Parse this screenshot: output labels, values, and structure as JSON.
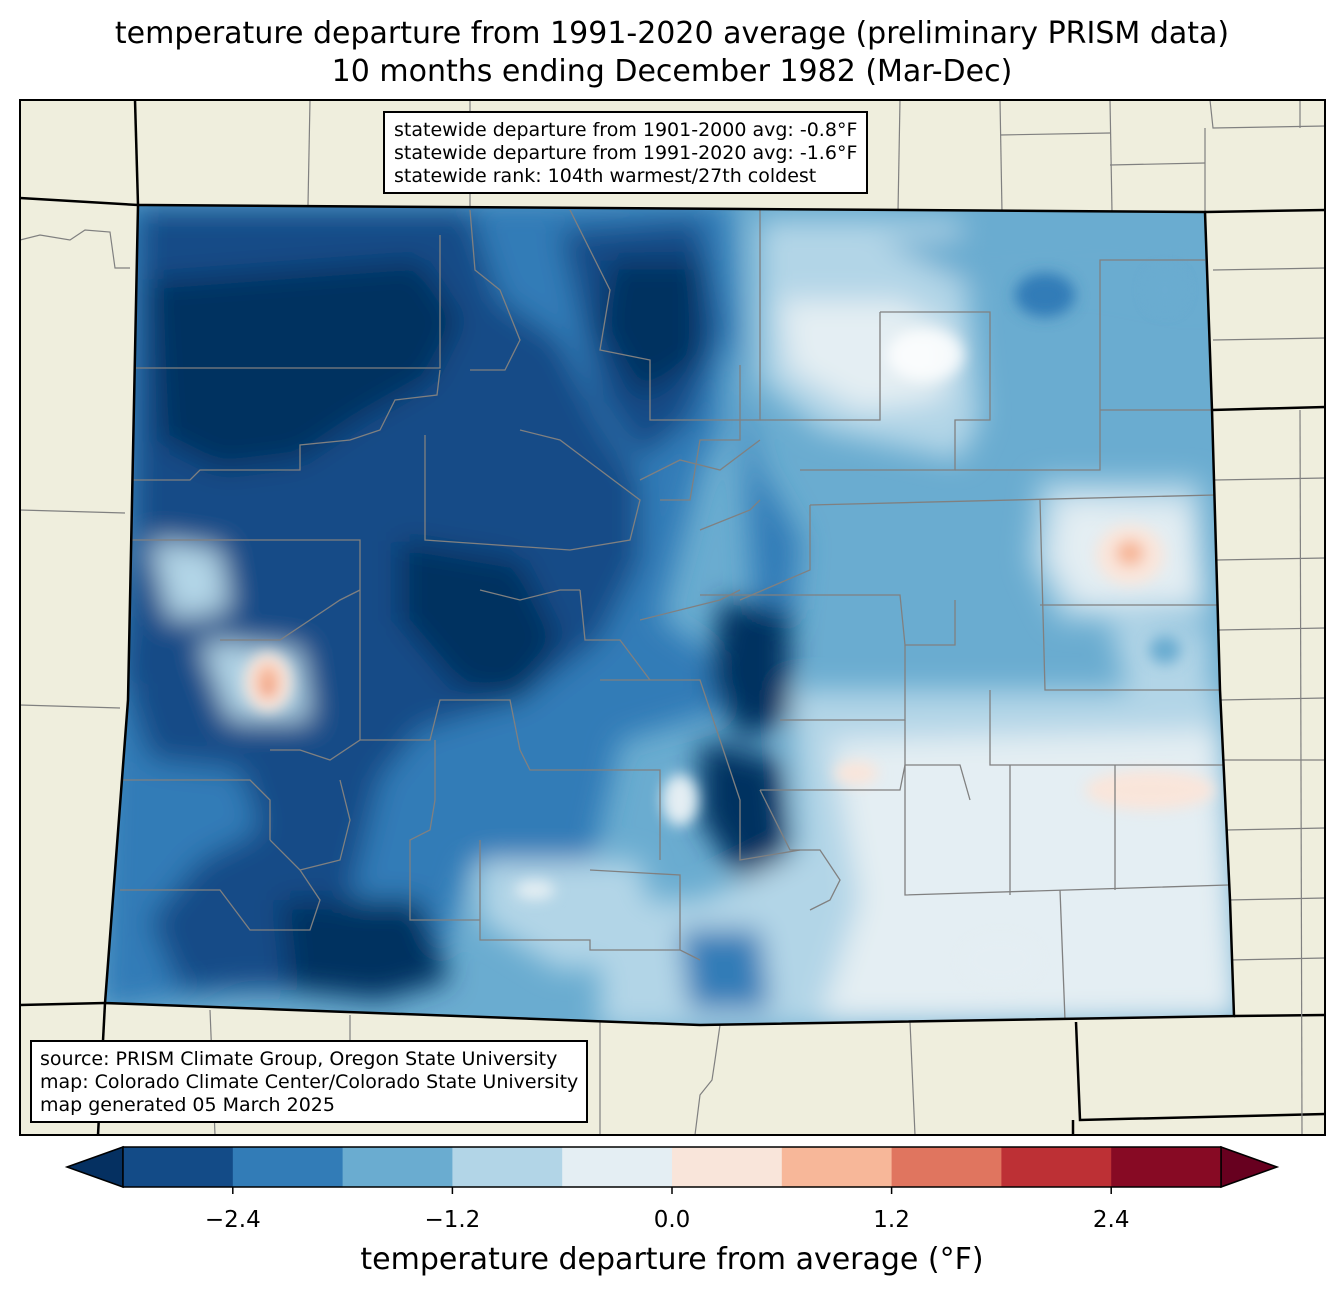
{
  "title": {
    "line1": "temperature departure from 1991-2020 average (preliminary PRISM data)",
    "line2": "10 months ending December 1982 (Mar-Dec)"
  },
  "stats": {
    "line1": "statewide departure from 1901-2000 avg: -0.8°F",
    "line2": "statewide departure from 1991-2020 avg: -1.6°F",
    "line3": "statewide rank: 104th warmest/27th coldest"
  },
  "credits": {
    "line1": "source: PRISM Climate Group, Oregon State University",
    "line2": "map: Colorado Climate Center/Colorado State University",
    "line3": "map generated 05 March 2025"
  },
  "colorbar": {
    "label": "temperature departure from average (°F)",
    "ticks": [
      "−2.4",
      "−1.2",
      "0.0",
      "1.2",
      "2.4"
    ],
    "tick_values": [
      -2.4,
      -1.2,
      0.0,
      1.2,
      2.4
    ],
    "bounds": [
      -3.0,
      3.0
    ],
    "step": 0.6,
    "colors": [
      "#053061",
      "#134b87",
      "#327cb7",
      "#6aacd0",
      "#b2d5e7",
      "#e4eef3",
      "#f9e5da",
      "#f7b799",
      "#e0755f",
      "#bd3035",
      "#870a24",
      "#67001f"
    ]
  },
  "colors": {
    "land": "#efeedd",
    "county_line": "#808080",
    "state_line": "#000000"
  }
}
